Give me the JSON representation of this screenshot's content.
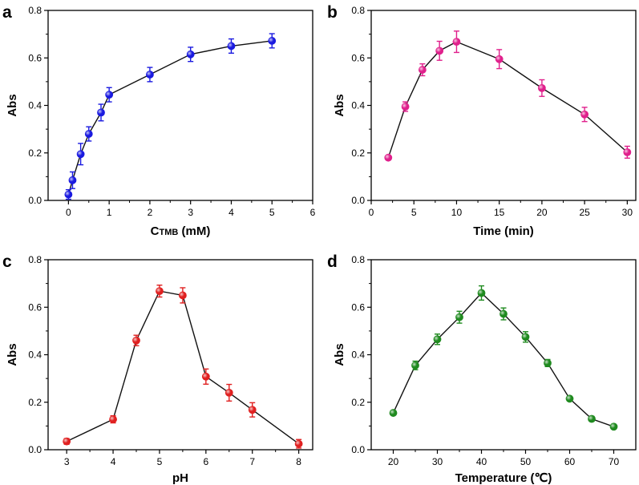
{
  "chart_data": [
    {
      "id": "a",
      "panel_label": "a",
      "type": "line",
      "xlabel_main": "C",
      "xlabel_sub": "TMB",
      "xlabel_tail": " (mM)",
      "ylabel": "Abs",
      "xlim": [
        -0.5,
        6
      ],
      "ylim": [
        0,
        0.8
      ],
      "xticks": [
        0,
        1,
        2,
        3,
        4,
        5,
        6
      ],
      "xtick_labels": [
        "0",
        "1",
        "2",
        "3",
        "4",
        "5",
        "6"
      ],
      "yticks": [
        0,
        0.2,
        0.4,
        0.6,
        0.8
      ],
      "ytick_labels": [
        "0.0",
        "0.2",
        "0.4",
        "0.6",
        "0.8"
      ],
      "color": "#1a1ae0",
      "series": [
        {
          "name": "a",
          "x": [
            0,
            0.1,
            0.3,
            0.5,
            0.8,
            1,
            2,
            3,
            4,
            5
          ],
          "y": [
            0.025,
            0.085,
            0.195,
            0.28,
            0.37,
            0.445,
            0.53,
            0.615,
            0.65,
            0.672
          ],
          "err": [
            0.02,
            0.035,
            0.045,
            0.03,
            0.035,
            0.03,
            0.03,
            0.03,
            0.03,
            0.03
          ]
        }
      ]
    },
    {
      "id": "b",
      "panel_label": "b",
      "type": "line",
      "xlabel": "Time (min)",
      "ylabel": "Abs",
      "xlim": [
        0,
        31
      ],
      "ylim": [
        0,
        0.8
      ],
      "xticks": [
        0,
        5,
        10,
        15,
        20,
        25,
        30
      ],
      "xtick_labels": [
        "0",
        "5",
        "10",
        "15",
        "20",
        "25",
        "30"
      ],
      "yticks": [
        0,
        0.2,
        0.4,
        0.6,
        0.8
      ],
      "ytick_labels": [
        "0.0",
        "0.2",
        "0.4",
        "0.6",
        "0.8"
      ],
      "color": "#e0208c",
      "series": [
        {
          "name": "b",
          "x": [
            2,
            4,
            6,
            8,
            10,
            15,
            20,
            25,
            30
          ],
          "y": [
            0.18,
            0.395,
            0.55,
            0.63,
            0.668,
            0.595,
            0.473,
            0.362,
            0.203
          ],
          "err": [
            0.008,
            0.02,
            0.025,
            0.04,
            0.045,
            0.04,
            0.035,
            0.03,
            0.025
          ]
        }
      ]
    },
    {
      "id": "c",
      "panel_label": "c",
      "type": "line",
      "xlabel": "pH",
      "ylabel": "Abs",
      "xlim": [
        2.6,
        8.3
      ],
      "ylim": [
        0,
        0.8
      ],
      "xticks": [
        3,
        4,
        5,
        6,
        7,
        8
      ],
      "xtick_labels": [
        "3",
        "4",
        "5",
        "6",
        "7",
        "8"
      ],
      "yticks": [
        0,
        0.2,
        0.4,
        0.6,
        0.8
      ],
      "ytick_labels": [
        "0.0",
        "0.2",
        "0.4",
        "0.6",
        "0.8"
      ],
      "color": "#e02020",
      "series": [
        {
          "name": "c",
          "x": [
            3,
            4,
            4.5,
            5,
            5.5,
            6,
            6.5,
            7,
            8
          ],
          "y": [
            0.035,
            0.128,
            0.46,
            0.668,
            0.65,
            0.308,
            0.24,
            0.168,
            0.025
          ],
          "err": [
            0.012,
            0.015,
            0.022,
            0.025,
            0.032,
            0.032,
            0.035,
            0.03,
            0.018
          ]
        }
      ]
    },
    {
      "id": "d",
      "panel_label": "d",
      "type": "line",
      "xlabel": "Temperature (℃)",
      "ylabel": "Abs",
      "xlim": [
        15,
        75
      ],
      "ylim": [
        0,
        0.8
      ],
      "xticks": [
        20,
        30,
        40,
        50,
        60,
        70
      ],
      "xtick_labels": [
        "20",
        "30",
        "40",
        "50",
        "60",
        "70"
      ],
      "yticks": [
        0,
        0.2,
        0.4,
        0.6,
        0.8
      ],
      "ytick_labels": [
        "0.0",
        "0.2",
        "0.4",
        "0.6",
        "0.8"
      ],
      "color": "#1f8a1f",
      "series": [
        {
          "name": "d",
          "x": [
            20,
            25,
            30,
            35,
            40,
            45,
            50,
            55,
            60,
            65,
            70
          ],
          "y": [
            0.155,
            0.355,
            0.465,
            0.558,
            0.66,
            0.572,
            0.475,
            0.365,
            0.215,
            0.13,
            0.097
          ],
          "err": [
            0.008,
            0.018,
            0.022,
            0.025,
            0.03,
            0.025,
            0.022,
            0.015,
            0.01,
            0.01,
            0.008
          ]
        }
      ]
    }
  ]
}
